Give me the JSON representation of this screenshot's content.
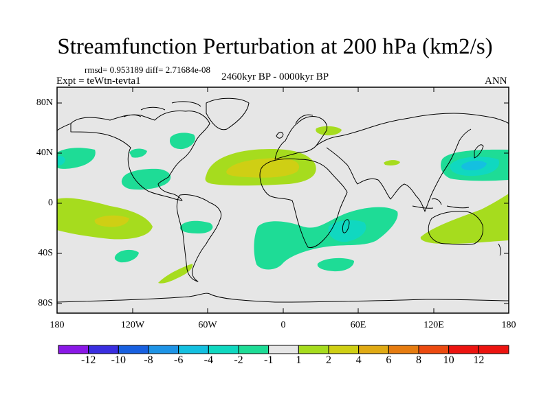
{
  "header": {
    "title": "Streamfunction Perturbation at 200 hPa (km2/s)",
    "stats": "rmsd= 0.953189 diff= 2.71684e-08",
    "experiment": "Expt = teWtn-tevta1",
    "period": "2460kyr BP - 0000kyr BP",
    "season": "ANN"
  },
  "axes": {
    "lat_labels": [
      "80N",
      "40N",
      "0",
      "40S",
      "80S"
    ],
    "lon_labels": [
      "180",
      "120W",
      "60W",
      "0",
      "60E",
      "120E",
      "180"
    ]
  },
  "colorbar": {
    "labels": [
      "-12",
      "-10",
      "-8",
      "-6",
      "-4",
      "-2",
      "-1",
      "1",
      "2",
      "4",
      "6",
      "8",
      "10",
      "12"
    ],
    "colors": [
      "#8a18e6",
      "#3a2ee0",
      "#1860e0",
      "#1e94e6",
      "#14c0e0",
      "#10d8c0",
      "#1edc96",
      "#e6e6e6",
      "#a6dc1e",
      "#cfcf14",
      "#e0aa14",
      "#e67c10",
      "#ec4a10",
      "#ec1410"
    ]
  },
  "colors": {
    "background": "#e6e6e6",
    "neg_1_to_2": "#1edc96",
    "neg_2_to_4": "#10d8c0",
    "pos_1_to_2": "#a6dc1e",
    "pos_2_to_4": "#cfcf14"
  }
}
